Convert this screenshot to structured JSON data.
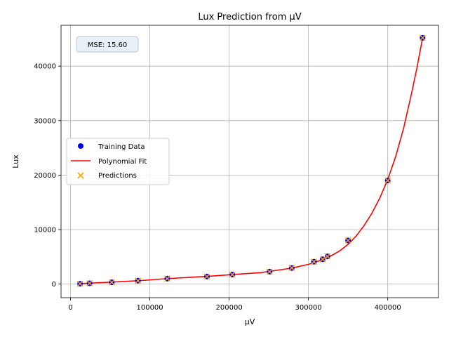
{
  "chart_data": {
    "type": "scatter",
    "title": "Lux Prediction from μV",
    "xlabel": "μV",
    "ylabel": "Lux",
    "xlim": [
      -12000,
      464000
    ],
    "ylim": [
      -2500,
      47500
    ],
    "xticks": [
      0,
      100000,
      200000,
      300000,
      400000
    ],
    "yticks": [
      0,
      10000,
      20000,
      30000,
      40000
    ],
    "grid": true,
    "legend_position": "center-left",
    "annotation": "MSE: 15.60",
    "colors": {
      "training": "#0000ff",
      "fit": "#ff0000",
      "predictions": "#ffa500"
    },
    "series": [
      {
        "name": "Training Data",
        "kind": "scatter",
        "marker": "circle",
        "x": [
          12000,
          24000,
          52000,
          85000,
          122000,
          172000,
          204000,
          251000,
          279000,
          307000,
          318000,
          324000,
          350000,
          400000,
          444000
        ],
        "y": [
          60,
          140,
          320,
          620,
          1000,
          1380,
          1740,
          2280,
          2950,
          4100,
          4550,
          5080,
          8000,
          19000,
          45200
        ]
      },
      {
        "name": "Polynomial Fit",
        "kind": "line",
        "x": [
          12000,
          30000,
          60000,
          90000,
          120000,
          150000,
          180000,
          210000,
          240000,
          260000,
          280000,
          300000,
          310000,
          320000,
          330000,
          340000,
          350000,
          360000,
          370000,
          380000,
          390000,
          400000,
          410000,
          420000,
          430000,
          437000,
          444000
        ],
        "y": [
          60,
          200,
          420,
          660,
          980,
          1220,
          1480,
          1800,
          2100,
          2520,
          2950,
          3620,
          4080,
          4620,
          5300,
          6150,
          7300,
          8800,
          10700,
          13000,
          15800,
          19200,
          23400,
          28600,
          35000,
          39800,
          45200
        ]
      },
      {
        "name": "Predictions",
        "kind": "scatter",
        "marker": "x",
        "x": [
          12000,
          24000,
          52000,
          85000,
          122000,
          172000,
          204000,
          251000,
          279000,
          307000,
          318000,
          324000,
          350000,
          400000,
          444000
        ],
        "y": [
          60,
          140,
          320,
          620,
          1000,
          1380,
          1740,
          2280,
          2950,
          4100,
          4550,
          5080,
          8000,
          19000,
          45200
        ]
      }
    ]
  }
}
